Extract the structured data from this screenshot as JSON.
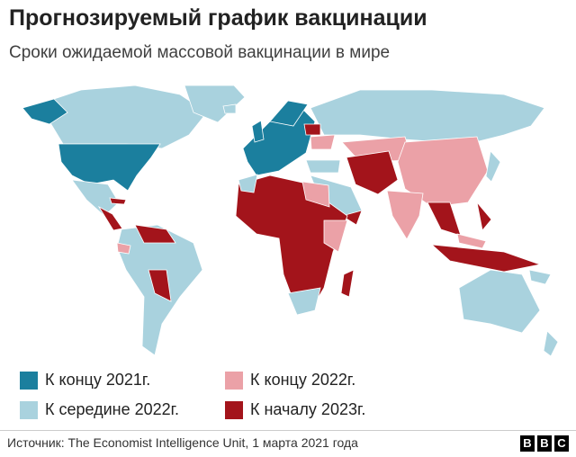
{
  "header": {
    "title": "Прогнозируемый график вакцинации",
    "subtitle": "Сроки ожидаемой массовой вакцинации в мире"
  },
  "legend": {
    "items": [
      {
        "label": "К концу 2021г.",
        "color": "#1b7f9e"
      },
      {
        "label": "К середине 2022г.",
        "color": "#a9d2de"
      },
      {
        "label": "К концу 2022г.",
        "color": "#eba1a7"
      },
      {
        "label": "К началу 2023г.",
        "color": "#a3141b"
      }
    ]
  },
  "footer": {
    "source": "Источник: The Economist Intelligence Unit, 1 марта 2021 года",
    "logo": [
      "B",
      "B",
      "C"
    ]
  }
}
